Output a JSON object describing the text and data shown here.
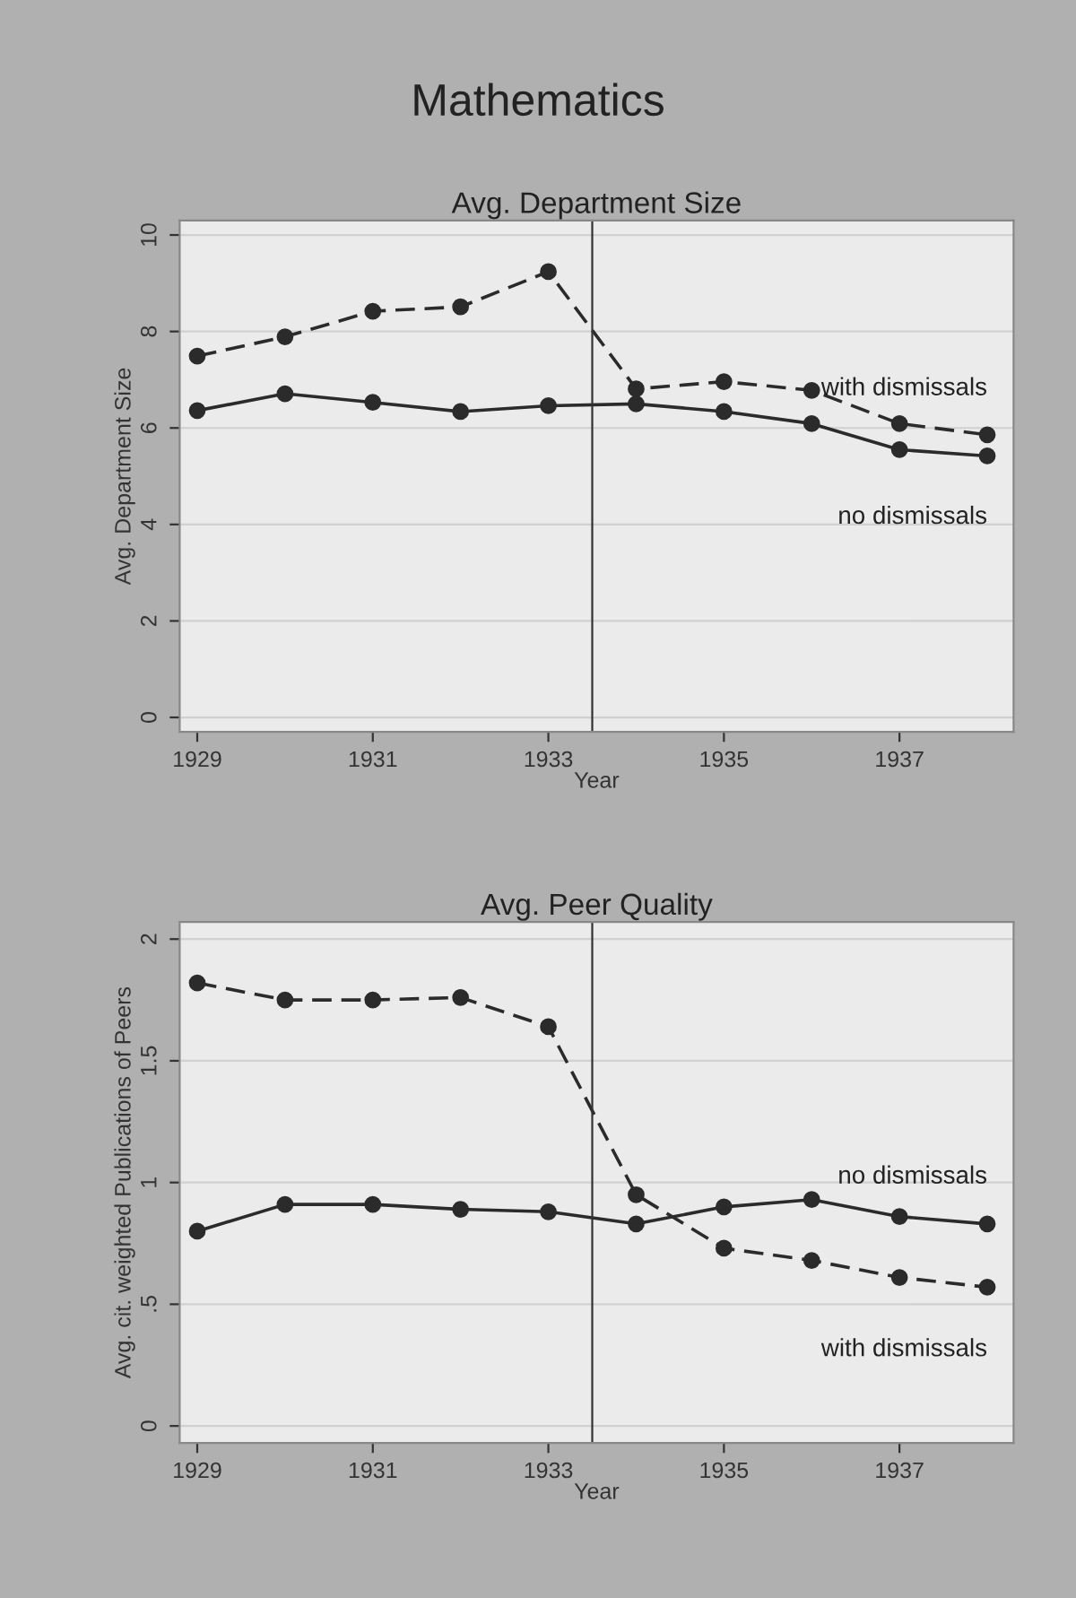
{
  "chart_data": [
    {
      "type": "line",
      "title": "Avg. Department Size",
      "xlabel": "Year",
      "ylabel": "Avg. Department Size",
      "annotations": [
        "Mathematics"
      ],
      "x": [
        1929,
        1930,
        1931,
        1932,
        1933,
        1934,
        1935,
        1936,
        1937,
        1938
      ],
      "series": [
        {
          "name": "with dismissals",
          "color": "#2b2b2b",
          "line_style": "dashed",
          "values": [
            7.49,
            7.89,
            8.42,
            8.51,
            9.24,
            6.81,
            6.96,
            6.78,
            6.09,
            5.86
          ]
        },
        {
          "name": "no dismissals",
          "color": "#2b2b2b",
          "line_style": "solid",
          "values": [
            6.36,
            6.71,
            6.53,
            6.34,
            6.46,
            6.5,
            6.34,
            6.09,
            5.55,
            5.42
          ]
        }
      ],
      "xlim": [
        1928.8,
        1938.3
      ],
      "xticks": [
        1929,
        1931,
        1933,
        1935,
        1937
      ],
      "ylim": [
        -0.3,
        10.3
      ],
      "yticks": [
        0,
        2,
        4,
        6,
        8,
        10
      ],
      "ref_lines": [
        {
          "axis": "x",
          "value": 1933.5,
          "color": "#333333"
        }
      ],
      "grid": "y",
      "marker": "circle",
      "legend": false
    },
    {
      "type": "line",
      "title": "Avg. Peer Quality",
      "xlabel": "Year",
      "ylabel": "Avg. cit. weighted Publications of Peers",
      "x": [
        1929,
        1930,
        1931,
        1932,
        1933,
        1934,
        1935,
        1936,
        1937,
        1938
      ],
      "series": [
        {
          "name": "with dismissals",
          "color": "#2b2b2b",
          "line_style": "dashed",
          "values": [
            1.82,
            1.75,
            1.75,
            1.76,
            1.64,
            0.95,
            0.73,
            0.68,
            0.61,
            0.57
          ]
        },
        {
          "name": "no dismissals",
          "color": "#2b2b2b",
          "line_style": "solid",
          "values": [
            0.8,
            0.91,
            0.91,
            0.89,
            0.88,
            0.83,
            0.9,
            0.93,
            0.86,
            0.83
          ]
        }
      ],
      "xlim": [
        1928.8,
        1938.3
      ],
      "xticks": [
        1929,
        1931,
        1933,
        1935,
        1937
      ],
      "ylim": [
        -0.07,
        2.07
      ],
      "yticks": [
        0,
        {
          "value": 0.5,
          "label": ".5"
        },
        1,
        1.5,
        2
      ],
      "ref_lines": [
        {
          "axis": "x",
          "value": 1933.5,
          "color": "#333333"
        }
      ],
      "grid": "y",
      "marker": "circle",
      "legend": false
    }
  ]
}
